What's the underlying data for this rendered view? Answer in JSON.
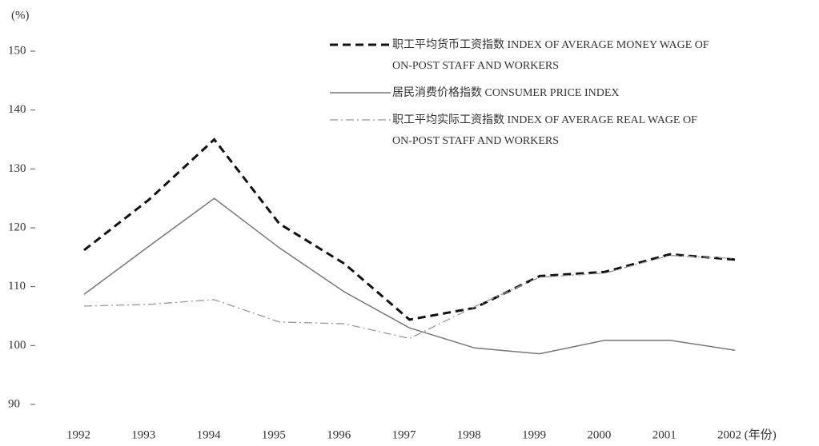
{
  "chart_data": {
    "type": "line",
    "unit": "(%)",
    "categories": [
      "1992",
      "1993",
      "1994",
      "1995",
      "1996",
      "1997",
      "1998",
      "1999",
      "2000",
      "2001",
      "2002 (年份)"
    ],
    "series": [
      {
        "name": "职工平均货币工资指数 INDEX OF AVERAGE MONEY WAGE OF ON-POST STAFF AND WORKERS",
        "color": "#111111",
        "style": "dashed",
        "values": [
          116.2,
          124.8,
          135,
          120.7,
          113.9,
          104.4,
          106.4,
          111.8,
          112.5,
          115.5,
          114.6
        ]
      },
      {
        "name": "居民消费价格指数 CONSUMER PRICE INDEX",
        "color": "#777777",
        "style": "solid",
        "values": [
          108.7,
          116.9,
          125,
          116.6,
          109.1,
          103,
          99.6,
          98.6,
          100.9,
          100.9,
          99.2
        ]
      },
      {
        "name": "职工平均实际工资指数 INDEX OF AVERAGE REAL WAGE OF ON-POST STAFF AND WORKERS",
        "color": "#999999",
        "style": "dashdot",
        "values": [
          106.7,
          107,
          107.8,
          104,
          103.7,
          101.2,
          106.6,
          111.6,
          112.3,
          115.3,
          114.8
        ]
      }
    ],
    "ylim": [
      90,
      150
    ],
    "yticks": [
      90,
      100,
      110,
      120,
      130,
      140,
      150
    ]
  }
}
